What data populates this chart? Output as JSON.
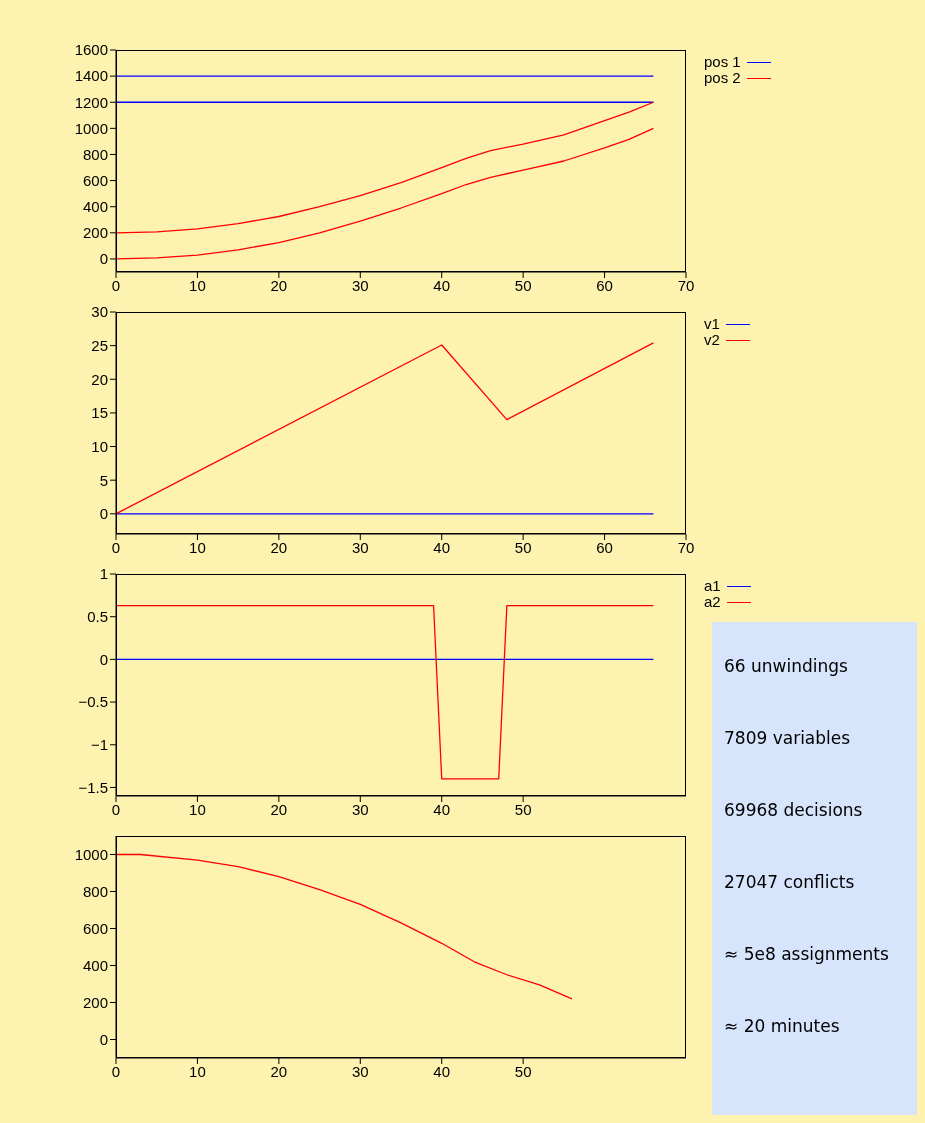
{
  "chart_data": [
    {
      "type": "line",
      "xlim": [
        0,
        70
      ],
      "xticks": [
        0,
        10,
        20,
        30,
        40,
        50,
        60,
        70
      ],
      "ylim": [
        -100,
        1600
      ],
      "yticks": [
        0,
        200,
        400,
        600,
        800,
        1000,
        1200,
        1400,
        1600
      ],
      "legend": "top right",
      "series": [
        {
          "name": "pos 1",
          "color": "#0000ff",
          "x": [
            0,
            66
          ],
          "values": [
            1400,
            1400
          ]
        },
        {
          "color": "#0000ff",
          "x": [
            0,
            66
          ],
          "values": [
            1200,
            1200
          ]
        },
        {
          "name": "pos 2",
          "color": "#ff0000",
          "x": [
            0,
            5,
            10,
            15,
            20,
            25,
            30,
            35,
            40,
            43,
            46,
            50,
            55,
            60,
            63,
            66
          ],
          "values": [
            200,
            208,
            230,
            270,
            325,
            400,
            485,
            585,
            700,
            770,
            830,
            880,
            950,
            1060,
            1125,
            1200
          ]
        },
        {
          "color": "#ff0000",
          "x": [
            0,
            5,
            10,
            15,
            20,
            25,
            30,
            35,
            40,
            43,
            46,
            50,
            55,
            60,
            63,
            66
          ],
          "values": [
            0,
            8,
            30,
            70,
            125,
            200,
            290,
            390,
            500,
            570,
            625,
            680,
            750,
            850,
            915,
            1000
          ]
        }
      ]
    },
    {
      "type": "line",
      "xlim": [
        0,
        70
      ],
      "xticks": [
        0,
        10,
        20,
        30,
        40,
        50,
        60,
        70
      ],
      "ylim": [
        -3,
        30
      ],
      "yticks": [
        0,
        5,
        10,
        15,
        20,
        25,
        30
      ],
      "legend": "top right",
      "series": [
        {
          "name": "v1",
          "color": "#0000ff",
          "x": [
            0,
            66
          ],
          "values": [
            0,
            0
          ]
        },
        {
          "name": "v2",
          "color": "#ff0000",
          "x": [
            0,
            40,
            48,
            66
          ],
          "values": [
            0,
            25.1,
            14,
            25.4
          ]
        }
      ]
    },
    {
      "type": "line",
      "xlim": [
        0,
        70
      ],
      "xticks": [
        0,
        10,
        20,
        30,
        40,
        50
      ],
      "ylim": [
        -1.6,
        1
      ],
      "yticks": [
        {
          "value": -1.5,
          "label": "−1.5"
        },
        {
          "value": -1,
          "label": "−1"
        },
        {
          "value": -0.5,
          "label": "−0.5"
        },
        0,
        0.5,
        1
      ],
      "legend": "top right",
      "series": [
        {
          "name": "a1",
          "color": "#0000ff",
          "x": [
            0,
            66
          ],
          "values": [
            0,
            0
          ]
        },
        {
          "name": "a2",
          "color": "#ff0000",
          "x": [
            0,
            39,
            40,
            47,
            48,
            66
          ],
          "values": [
            0.63,
            0.63,
            -1.4,
            -1.4,
            0.63,
            0.63
          ]
        }
      ]
    },
    {
      "type": "line",
      "xlim": [
        0,
        70
      ],
      "xticks": [
        0,
        10,
        20,
        30,
        40,
        50
      ],
      "ylim": [
        -100,
        1100
      ],
      "yticks": [
        0,
        200,
        400,
        600,
        800,
        1000
      ],
      "series": [
        {
          "color": "#ff0000",
          "x": [
            0,
            3,
            10,
            15,
            20,
            25,
            30,
            35,
            40,
            44,
            48,
            52,
            56
          ],
          "values": [
            1000,
            1000,
            970,
            935,
            880,
            810,
            730,
            630,
            520,
            420,
            350,
            295,
            220
          ]
        }
      ]
    },
    {
      "type": "other",
      "annotations": [
        "66 unwindings",
        "7809 variables",
        "69968 decisions",
        "27047 conflicts",
        "≈ 5e8 assignments",
        "≈ 20 minutes"
      ]
    }
  ]
}
